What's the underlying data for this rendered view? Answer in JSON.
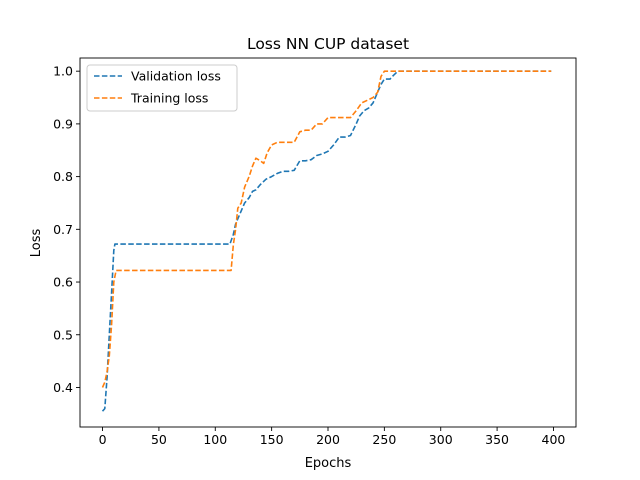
{
  "chart_data": {
    "type": "line",
    "title": "Loss NN CUP dataset",
    "xlabel": "Epochs",
    "ylabel": "Loss",
    "xlim": [
      -20,
      420
    ],
    "ylim": [
      0.325,
      1.025
    ],
    "xticks": [
      0,
      50,
      100,
      150,
      200,
      250,
      300,
      350,
      400
    ],
    "yticks": [
      0.4,
      0.5,
      0.6,
      0.7,
      0.8,
      0.9,
      1.0
    ],
    "ytick_labels": [
      "0.4",
      "0.5",
      "0.6",
      "0.7",
      "0.8",
      "0.9",
      "1.0"
    ],
    "grid": false,
    "legend": "top-left",
    "series": [
      {
        "name": "Validation loss",
        "color": "#1f77b4",
        "style": "dashed",
        "x": [
          0,
          2,
          4,
          6,
          8,
          10,
          11,
          20,
          30,
          40,
          50,
          60,
          70,
          80,
          90,
          100,
          110,
          113,
          116,
          118,
          120,
          123,
          126,
          130,
          133,
          136,
          140,
          145,
          150,
          155,
          160,
          165,
          170,
          175,
          180,
          185,
          190,
          195,
          200,
          205,
          210,
          215,
          220,
          225,
          228,
          232,
          236,
          240,
          244,
          247,
          250,
          255,
          258,
          262,
          270,
          300,
          350,
          398
        ],
        "y": [
          0.355,
          0.36,
          0.42,
          0.5,
          0.58,
          0.66,
          0.672,
          0.672,
          0.672,
          0.672,
          0.672,
          0.672,
          0.672,
          0.672,
          0.672,
          0.672,
          0.672,
          0.672,
          0.69,
          0.71,
          0.72,
          0.735,
          0.75,
          0.76,
          0.772,
          0.775,
          0.785,
          0.795,
          0.8,
          0.806,
          0.81,
          0.81,
          0.812,
          0.83,
          0.83,
          0.832,
          0.84,
          0.843,
          0.848,
          0.86,
          0.875,
          0.875,
          0.878,
          0.9,
          0.915,
          0.925,
          0.93,
          0.94,
          0.96,
          0.975,
          0.985,
          0.985,
          0.992,
          1.0,
          1.0,
          1.0,
          1.0,
          1.0
        ]
      },
      {
        "name": "Training loss",
        "color": "#ff7f0e",
        "style": "dashed",
        "x": [
          0,
          2,
          4,
          6,
          8,
          10,
          12,
          20,
          30,
          40,
          50,
          60,
          70,
          80,
          90,
          100,
          110,
          114,
          116,
          118,
          120,
          123,
          126,
          130,
          133,
          136,
          140,
          143,
          146,
          150,
          155,
          160,
          165,
          170,
          175,
          180,
          185,
          190,
          195,
          200,
          205,
          210,
          215,
          220,
          225,
          230,
          235,
          240,
          244,
          247,
          250,
          255,
          260,
          300,
          350,
          398
        ],
        "y": [
          0.4,
          0.41,
          0.43,
          0.46,
          0.52,
          0.6,
          0.622,
          0.622,
          0.622,
          0.622,
          0.622,
          0.622,
          0.622,
          0.622,
          0.622,
          0.622,
          0.622,
          0.622,
          0.67,
          0.7,
          0.74,
          0.75,
          0.78,
          0.8,
          0.82,
          0.835,
          0.83,
          0.825,
          0.845,
          0.86,
          0.865,
          0.865,
          0.865,
          0.865,
          0.885,
          0.888,
          0.888,
          0.9,
          0.9,
          0.912,
          0.912,
          0.912,
          0.912,
          0.912,
          0.925,
          0.94,
          0.945,
          0.95,
          0.96,
          0.99,
          1.0,
          1.0,
          1.0,
          1.0,
          1.0,
          1.0
        ]
      }
    ]
  }
}
